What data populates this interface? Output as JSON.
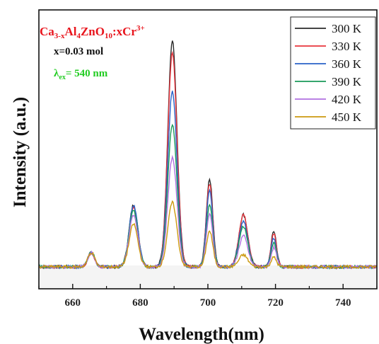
{
  "chart_data": {
    "type": "line",
    "xlabel": "Wavelength(nm)",
    "ylabel": "Intensity (a.u.)",
    "xlim": [
      650,
      750
    ],
    "x_ticks": [
      660,
      680,
      700,
      720,
      740
    ],
    "ylim": [
      0,
      1.1
    ],
    "y_ticks_shown": false,
    "grid": false,
    "legend_position": "top-right",
    "annotations": {
      "formula": {
        "base1": "Ca",
        "sub1": "3-x",
        "base2": "Al",
        "sub2": "4",
        "base3": "ZnO",
        "sub3": "10",
        "base4": ":xCr",
        "sup4": "3+",
        "color": "#e8141c"
      },
      "concentration": {
        "text": "x=0.03 mol",
        "color": "#111111"
      },
      "excitation": {
        "symbol": "λ",
        "sub": "ex",
        "text": "= 540 nm",
        "color": "#22cc22"
      }
    },
    "peaks": [
      {
        "x": 665.5,
        "width": 1.0
      },
      {
        "x": 678,
        "width": 1.3
      },
      {
        "x": 689.5,
        "width": 1.35
      },
      {
        "x": 700.5,
        "width": 0.95
      },
      {
        "x": 710.5,
        "width": 1.3
      },
      {
        "x": 719.5,
        "width": 0.8
      }
    ],
    "baseline": 0.0,
    "series": [
      {
        "name": "300 K",
        "color": "#2a2a2a",
        "peak_values": [
          0.06,
          0.26,
          0.95,
          0.37,
          0.22,
          0.15
        ]
      },
      {
        "name": "330 K",
        "color": "#e8343c",
        "peak_values": [
          0.06,
          0.25,
          0.9,
          0.35,
          0.22,
          0.14
        ]
      },
      {
        "name": "360 K",
        "color": "#2a62c8",
        "peak_values": [
          0.06,
          0.26,
          0.74,
          0.32,
          0.19,
          0.12
        ]
      },
      {
        "name": "390 K",
        "color": "#1a9a5a",
        "peak_values": [
          0.06,
          0.24,
          0.6,
          0.26,
          0.17,
          0.1
        ]
      },
      {
        "name": "420 K",
        "color": "#b070e0",
        "peak_values": [
          0.06,
          0.22,
          0.46,
          0.22,
          0.13,
          0.08
        ]
      },
      {
        "name": "450 K",
        "color": "#cc9a10",
        "peak_values": [
          0.06,
          0.18,
          0.27,
          0.15,
          0.05,
          0.04
        ]
      }
    ]
  }
}
